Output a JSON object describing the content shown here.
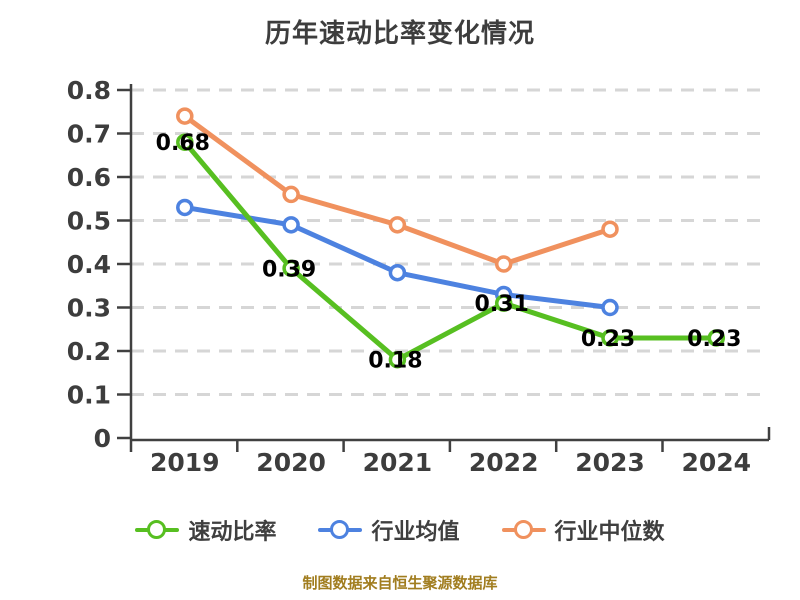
{
  "title": "历年速动比率变化情况",
  "footer": "制图数据来自恒生聚源数据库",
  "colors": {
    "quick_ratio_green": "#57bf21",
    "industry_avg_blue": "#4d82e0",
    "industry_median_orange": "#f0915e",
    "axis_text": "#3d3d3d",
    "gridline": "#d6d6d6",
    "data_label": "#000000",
    "footer_text": "#a17d1f"
  },
  "chart_data": {
    "type": "line",
    "title": "历年速动比率变化情况",
    "categories": [
      "2019",
      "2020",
      "2021",
      "2022",
      "2023",
      "2024"
    ],
    "series": [
      {
        "name": "速动比率",
        "color": "#57bf21",
        "values": [
          0.68,
          0.39,
          0.18,
          0.31,
          0.23,
          0.23
        ],
        "labels": [
          "0.68",
          "0.39",
          "0.18",
          "0.31",
          "0.23",
          "0.23"
        ],
        "show_labels": true
      },
      {
        "name": "行业均值",
        "color": "#4d82e0",
        "values": [
          0.53,
          0.49,
          0.38,
          0.33,
          0.3,
          null
        ],
        "show_labels": false
      },
      {
        "name": "行业中位数",
        "color": "#f0915e",
        "values": [
          0.74,
          0.56,
          0.49,
          0.4,
          0.48,
          null
        ],
        "show_labels": false
      }
    ],
    "xlabel": "",
    "ylabel": "",
    "ylim": [
      0,
      0.8
    ],
    "yticks": [
      "0",
      "0.1",
      "0.2",
      "0.3",
      "0.4",
      "0.5",
      "0.6",
      "0.7",
      "0.8"
    ],
    "grid": "horizontal dashed",
    "legend_position": "bottom",
    "marker": "white-filled circle"
  }
}
